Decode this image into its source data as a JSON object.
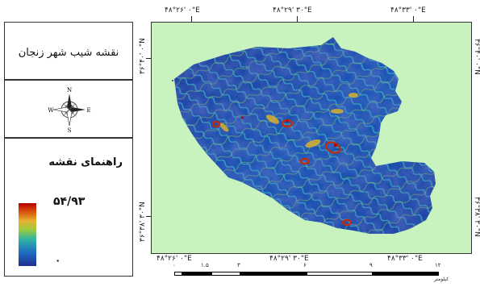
{
  "map": {
    "title": "نقشه شیب شهر زنجان",
    "legend_title": "راهنمای نقشه",
    "legend_max": "۵۴/۹۳",
    "legend_min": "۰",
    "colors": {
      "background": "#c9f3be",
      "high": "#b30000",
      "mid": "#9ccc3c",
      "low": "#1f2e8f"
    }
  },
  "compass": {
    "n": "N",
    "s": "S",
    "e": "E",
    "w": "W",
    "icon": "north-arrow-icon"
  },
  "coords": {
    "top": [
      "۴۸°۲۶' ۰\"E",
      "۴۸°۲۹' ۳۰\"E",
      "۴۸°۳۳' ۰\"E"
    ],
    "bottom": [
      "۴۸°۲۶' ۰\"E",
      "۴۸°۲۹' ۳۰\"E",
      "۴۸°۳۳' ۰\"E"
    ],
    "left": [
      "۳۶°۴۰' ۰\"N",
      "۳۶°۳۸' ۳۰\"N"
    ],
    "right": [
      "۳۶°۴۰' ۰\"N",
      "۳۶°۳۸' ۳۰\"N"
    ]
  },
  "scale": {
    "labels": [
      "۰",
      "۱.۵",
      "۳",
      "۶",
      "۹",
      "۱۲"
    ],
    "unit": "کیلومتر"
  }
}
